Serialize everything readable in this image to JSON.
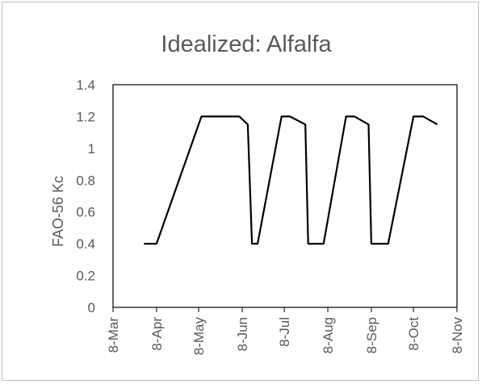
{
  "chart_data": {
    "type": "line",
    "title": "Idealized: Alfalfa",
    "xlabel": "",
    "ylabel": "FAO-56 Kc",
    "ylim": [
      0,
      1.4
    ],
    "yticks": [
      "0",
      "0.2",
      "0.4",
      "0.6",
      "0.8",
      "1",
      "1.2",
      "1.4"
    ],
    "xlim": [
      "2019-03-08",
      "2019-11-08"
    ],
    "xticks": [
      "8-Mar",
      "8-Apr",
      "8-May",
      "8-Jun",
      "8-Jul",
      "8-Aug",
      "8-Sep",
      "8-Oct",
      "8-Nov"
    ],
    "xtick_dates": [
      "2019-03-08",
      "2019-04-08",
      "2019-05-08",
      "2019-06-08",
      "2019-07-08",
      "2019-08-08",
      "2019-09-08",
      "2019-10-08",
      "2019-11-08"
    ],
    "grid": false,
    "legend": "none",
    "series": [
      {
        "color": "#000000",
        "x": [
          "2019-03-30",
          "2019-04-08",
          "2019-05-10",
          "2019-06-01",
          "2019-06-06",
          "2019-06-12",
          "2019-06-15",
          "2019-06-19",
          "2019-07-06",
          "2019-07-12",
          "2019-07-23",
          "2019-07-25",
          "2019-07-28",
          "2019-08-05",
          "2019-08-21",
          "2019-08-27",
          "2019-09-06",
          "2019-09-08",
          "2019-09-12",
          "2019-09-20",
          "2019-10-08",
          "2019-10-15",
          "2019-10-25"
        ],
        "y": [
          0.4,
          0.4,
          1.2,
          1.2,
          1.2,
          1.15,
          0.4,
          0.4,
          1.2,
          1.2,
          1.15,
          0.4,
          0.4,
          0.4,
          1.2,
          1.2,
          1.15,
          0.4,
          0.4,
          0.4,
          1.2,
          1.2,
          1.15
        ]
      }
    ]
  }
}
